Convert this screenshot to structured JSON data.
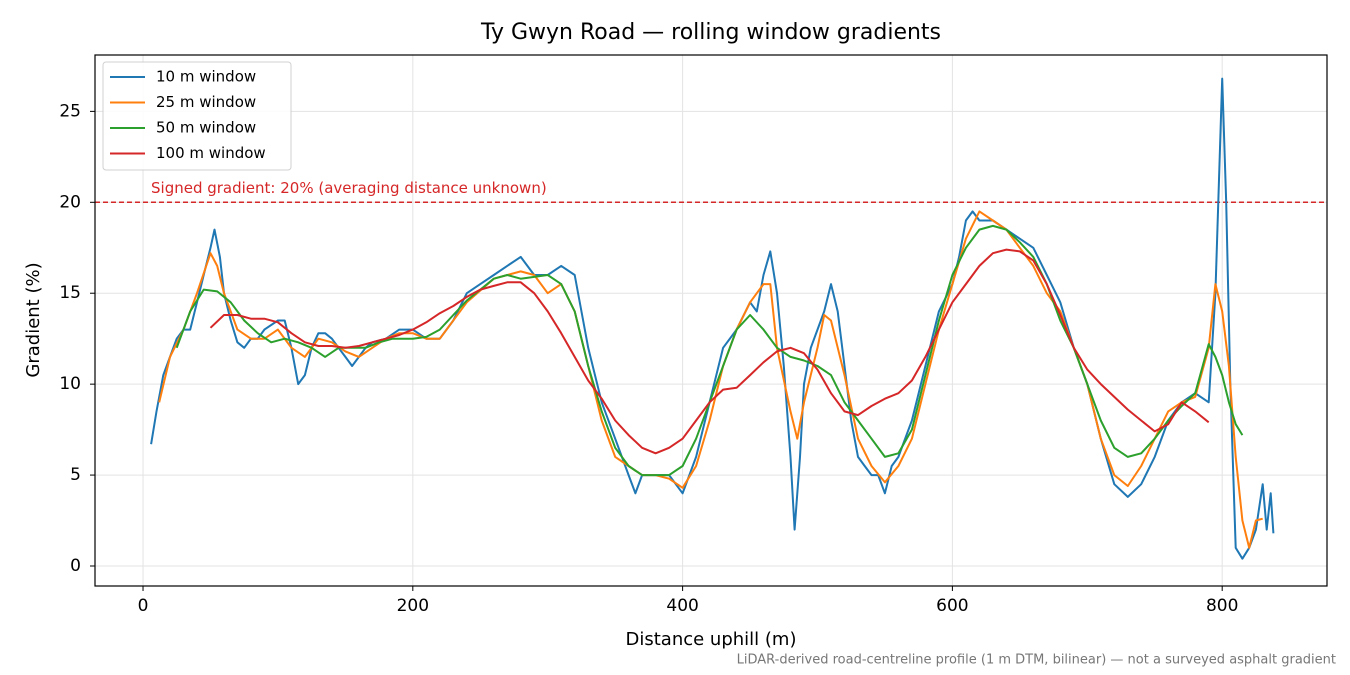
{
  "chart_data": {
    "type": "line",
    "title": "Ty Gwyn Road — rolling window gradients",
    "x_label": "Distance uphill (m)",
    "y_label": "Gradient (%)",
    "note": "LiDAR-derived road-centreline profile (1 m DTM, bilinear) — not a surveyed asphalt gradient",
    "xlim": [
      -35.6,
      877.7
    ],
    "ylim": [
      -1.1,
      28.1
    ],
    "xticks": [
      0,
      200,
      400,
      600,
      800
    ],
    "yticks": [
      0,
      5,
      10,
      15,
      20,
      25
    ],
    "grid": true,
    "legend": "upper left",
    "reference_line": {
      "value": 20,
      "label": "Signed gradient: 20% (averaging distance unknown)",
      "color": "#d62728"
    },
    "series": [
      {
        "name": "10 m window",
        "color": "#1f77b4",
        "x": [
          6,
          10,
          15,
          20,
          25,
          30,
          35,
          40,
          45,
          50,
          53,
          57,
          60,
          65,
          70,
          75,
          80,
          85,
          90,
          100,
          105,
          110,
          115,
          120,
          125,
          130,
          135,
          140,
          145,
          150,
          155,
          160,
          165,
          170,
          180,
          190,
          200,
          210,
          220,
          230,
          240,
          250,
          260,
          270,
          280,
          290,
          300,
          310,
          320,
          330,
          340,
          350,
          360,
          365,
          370,
          380,
          390,
          400,
          410,
          420,
          430,
          440,
          450,
          455,
          460,
          465,
          470,
          475,
          480,
          483,
          487,
          490,
          495,
          500,
          505,
          510,
          515,
          520,
          525,
          530,
          535,
          540,
          545,
          550,
          555,
          560,
          570,
          580,
          590,
          600,
          605,
          610,
          615,
          620,
          630,
          640,
          650,
          660,
          670,
          680,
          690,
          700,
          710,
          720,
          730,
          740,
          750,
          760,
          770,
          780,
          790,
          795,
          800,
          803,
          806,
          810,
          815,
          820,
          825,
          830,
          833,
          836,
          838
        ],
        "values": [
          6.7,
          8.5,
          10.5,
          11.5,
          12.5,
          13,
          13,
          14.5,
          16,
          17.5,
          18.5,
          17,
          15,
          13.5,
          12.3,
          12,
          12.5,
          12.5,
          13,
          13.5,
          13.5,
          12,
          10,
          10.5,
          12,
          12.8,
          12.8,
          12.5,
          12,
          11.5,
          11,
          11.5,
          12,
          12.3,
          12.5,
          13,
          13,
          12.5,
          12.5,
          13.5,
          15,
          15.5,
          16,
          16.5,
          17,
          16,
          16,
          16.5,
          16,
          12,
          9,
          7,
          5,
          4,
          5,
          5,
          5,
          4,
          6,
          9,
          12,
          13,
          14.5,
          14,
          16,
          17.3,
          15,
          11,
          6,
          2,
          6,
          10,
          12,
          13,
          14,
          15.5,
          14,
          11,
          8,
          6,
          5.5,
          5,
          5,
          4,
          5.5,
          6,
          8,
          11,
          14,
          15.5,
          17,
          19,
          19.5,
          19,
          19,
          18.5,
          18,
          17.5,
          16,
          14.5,
          12,
          10,
          7,
          4.5,
          3.8,
          4.5,
          6,
          8,
          9,
          9.5,
          9,
          15,
          26.8,
          20,
          10,
          1,
          0.4,
          1,
          2,
          4.5,
          2,
          4,
          1.8
        ]
      },
      {
        "name": "25 m window",
        "color": "#ff7f0e",
        "x": [
          12,
          20,
          30,
          40,
          50,
          55,
          60,
          70,
          80,
          90,
          100,
          110,
          120,
          130,
          140,
          150,
          160,
          170,
          180,
          190,
          200,
          210,
          220,
          240,
          260,
          280,
          290,
          300,
          310,
          320,
          330,
          340,
          350,
          360,
          370,
          380,
          390,
          400,
          410,
          420,
          430,
          440,
          450,
          460,
          465,
          470,
          480,
          485,
          490,
          500,
          505,
          510,
          520,
          530,
          540,
          550,
          560,
          570,
          580,
          590,
          600,
          610,
          620,
          630,
          640,
          650,
          660,
          670,
          680,
          690,
          700,
          710,
          720,
          730,
          740,
          750,
          760,
          770,
          780,
          790,
          795,
          800,
          805,
          810,
          815,
          820,
          825,
          830
        ],
        "values": [
          9,
          11.5,
          13,
          15,
          17.2,
          16.5,
          15,
          13,
          12.5,
          12.5,
          13,
          12,
          11.5,
          12.5,
          12.3,
          11.8,
          11.5,
          12,
          12.5,
          12.8,
          12.8,
          12.5,
          12.5,
          14.5,
          15.8,
          16.2,
          16,
          15,
          15.5,
          14,
          11,
          8,
          6,
          5.5,
          5,
          5,
          4.8,
          4.3,
          5.5,
          8,
          11,
          13,
          14.5,
          15.5,
          15.5,
          12,
          8.5,
          7,
          9,
          12,
          13.8,
          13.5,
          10.5,
          7,
          5.5,
          4.6,
          5.5,
          7,
          10,
          13,
          15.5,
          18,
          19.5,
          19,
          18.5,
          17.5,
          16.5,
          15,
          14,
          12,
          10,
          7,
          5,
          4.4,
          5.5,
          7,
          8.5,
          9,
          9.3,
          12,
          15.5,
          14,
          11,
          6,
          2.5,
          1,
          2.5,
          2.6
        ]
      },
      {
        "name": "50 m window",
        "color": "#2ca02c",
        "x": [
          25,
          35,
          45,
          55,
          65,
          75,
          85,
          95,
          105,
          115,
          125,
          135,
          145,
          155,
          165,
          175,
          185,
          200,
          210,
          220,
          230,
          240,
          250,
          260,
          270,
          280,
          290,
          300,
          310,
          320,
          330,
          340,
          350,
          360,
          370,
          380,
          390,
          400,
          410,
          420,
          430,
          440,
          450,
          460,
          470,
          480,
          490,
          500,
          510,
          520,
          530,
          540,
          550,
          560,
          570,
          580,
          590,
          600,
          610,
          620,
          630,
          640,
          650,
          660,
          670,
          680,
          690,
          700,
          710,
          720,
          730,
          740,
          750,
          760,
          770,
          780,
          790,
          795,
          800,
          805,
          810,
          815
        ],
        "values": [
          12,
          14,
          15.2,
          15.1,
          14.5,
          13.5,
          12.8,
          12.3,
          12.5,
          12.3,
          12,
          11.5,
          12,
          12,
          12,
          12.3,
          12.5,
          12.5,
          12.6,
          13,
          13.8,
          14.6,
          15.2,
          15.8,
          16,
          15.8,
          15.9,
          16,
          15.5,
          14,
          11,
          8.5,
          6.5,
          5.5,
          5,
          5,
          5,
          5.5,
          7,
          9,
          11,
          13,
          13.8,
          13,
          12,
          11.5,
          11.3,
          11,
          10.5,
          9,
          8,
          7,
          6,
          6.2,
          7.5,
          10.5,
          13.5,
          16,
          17.5,
          18.5,
          18.7,
          18.5,
          17.8,
          17,
          15.5,
          13.5,
          12,
          10,
          8,
          6.5,
          6,
          6.2,
          7,
          8,
          8.8,
          9.5,
          12.2,
          11.5,
          10.5,
          9,
          7.8,
          7.2
        ]
      },
      {
        "name": "100 m window",
        "color": "#d62728",
        "x": [
          50,
          60,
          70,
          80,
          90,
          100,
          110,
          120,
          130,
          140,
          150,
          160,
          170,
          180,
          190,
          200,
          210,
          220,
          230,
          240,
          250,
          260,
          270,
          280,
          290,
          300,
          310,
          320,
          330,
          340,
          350,
          360,
          370,
          380,
          390,
          400,
          410,
          420,
          430,
          440,
          450,
          460,
          470,
          480,
          490,
          500,
          510,
          520,
          530,
          540,
          550,
          560,
          570,
          580,
          590,
          600,
          610,
          620,
          630,
          640,
          650,
          660,
          670,
          680,
          690,
          700,
          710,
          720,
          730,
          740,
          750,
          760,
          770,
          780,
          790
        ],
        "values": [
          13.1,
          13.8,
          13.8,
          13.6,
          13.6,
          13.4,
          12.8,
          12.3,
          12.1,
          12.1,
          12,
          12.1,
          12.3,
          12.5,
          12.7,
          13,
          13.4,
          13.9,
          14.3,
          14.8,
          15.2,
          15.4,
          15.6,
          15.6,
          15,
          14,
          12.8,
          11.5,
          10.2,
          9.2,
          8,
          7.2,
          6.5,
          6.2,
          6.5,
          7,
          8,
          9,
          9.7,
          9.8,
          10.5,
          11.2,
          11.8,
          12,
          11.7,
          10.8,
          9.5,
          8.5,
          8.3,
          8.8,
          9.2,
          9.5,
          10.2,
          11.5,
          13,
          14.5,
          15.5,
          16.5,
          17.2,
          17.4,
          17.3,
          16.8,
          15.5,
          13.8,
          12,
          10.8,
          10,
          9.3,
          8.6,
          8,
          7.4,
          7.8,
          9,
          8.5,
          7.9
        ]
      }
    ]
  }
}
